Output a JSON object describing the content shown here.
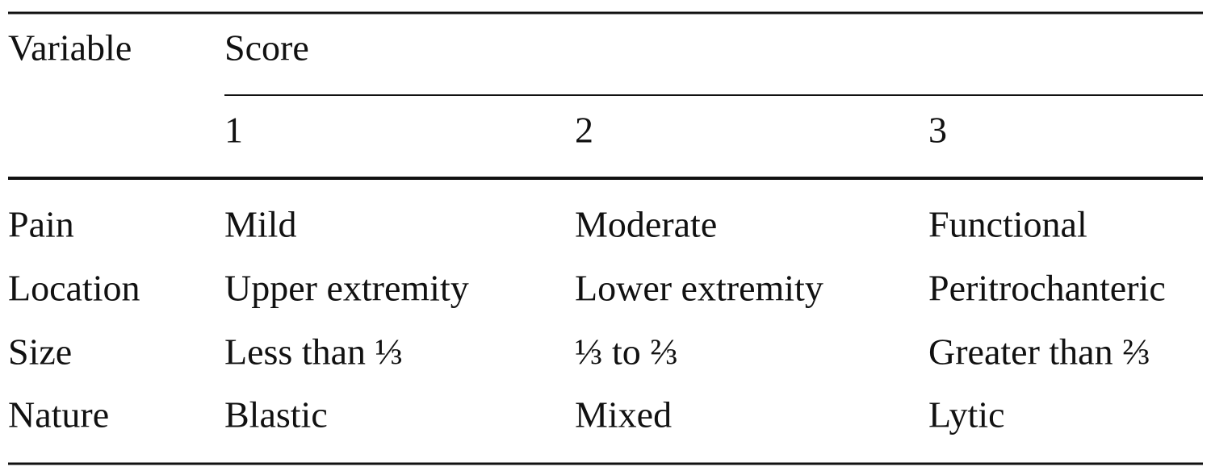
{
  "table": {
    "header": [
      "Variable",
      "Score"
    ],
    "subheader": [
      "1",
      "2",
      "3"
    ],
    "rows": [
      [
        "Pain",
        "Mild",
        "Moderate",
        "Functional"
      ],
      [
        "Location",
        "Upper extremity",
        "Lower extremity",
        "Peritrochanteric"
      ],
      [
        "Size",
        "Less than ⅓",
        "⅓ to ⅔",
        "Greater than ⅔"
      ],
      [
        "Nature",
        "Blastic",
        "Mixed",
        "Lytic"
      ]
    ]
  }
}
